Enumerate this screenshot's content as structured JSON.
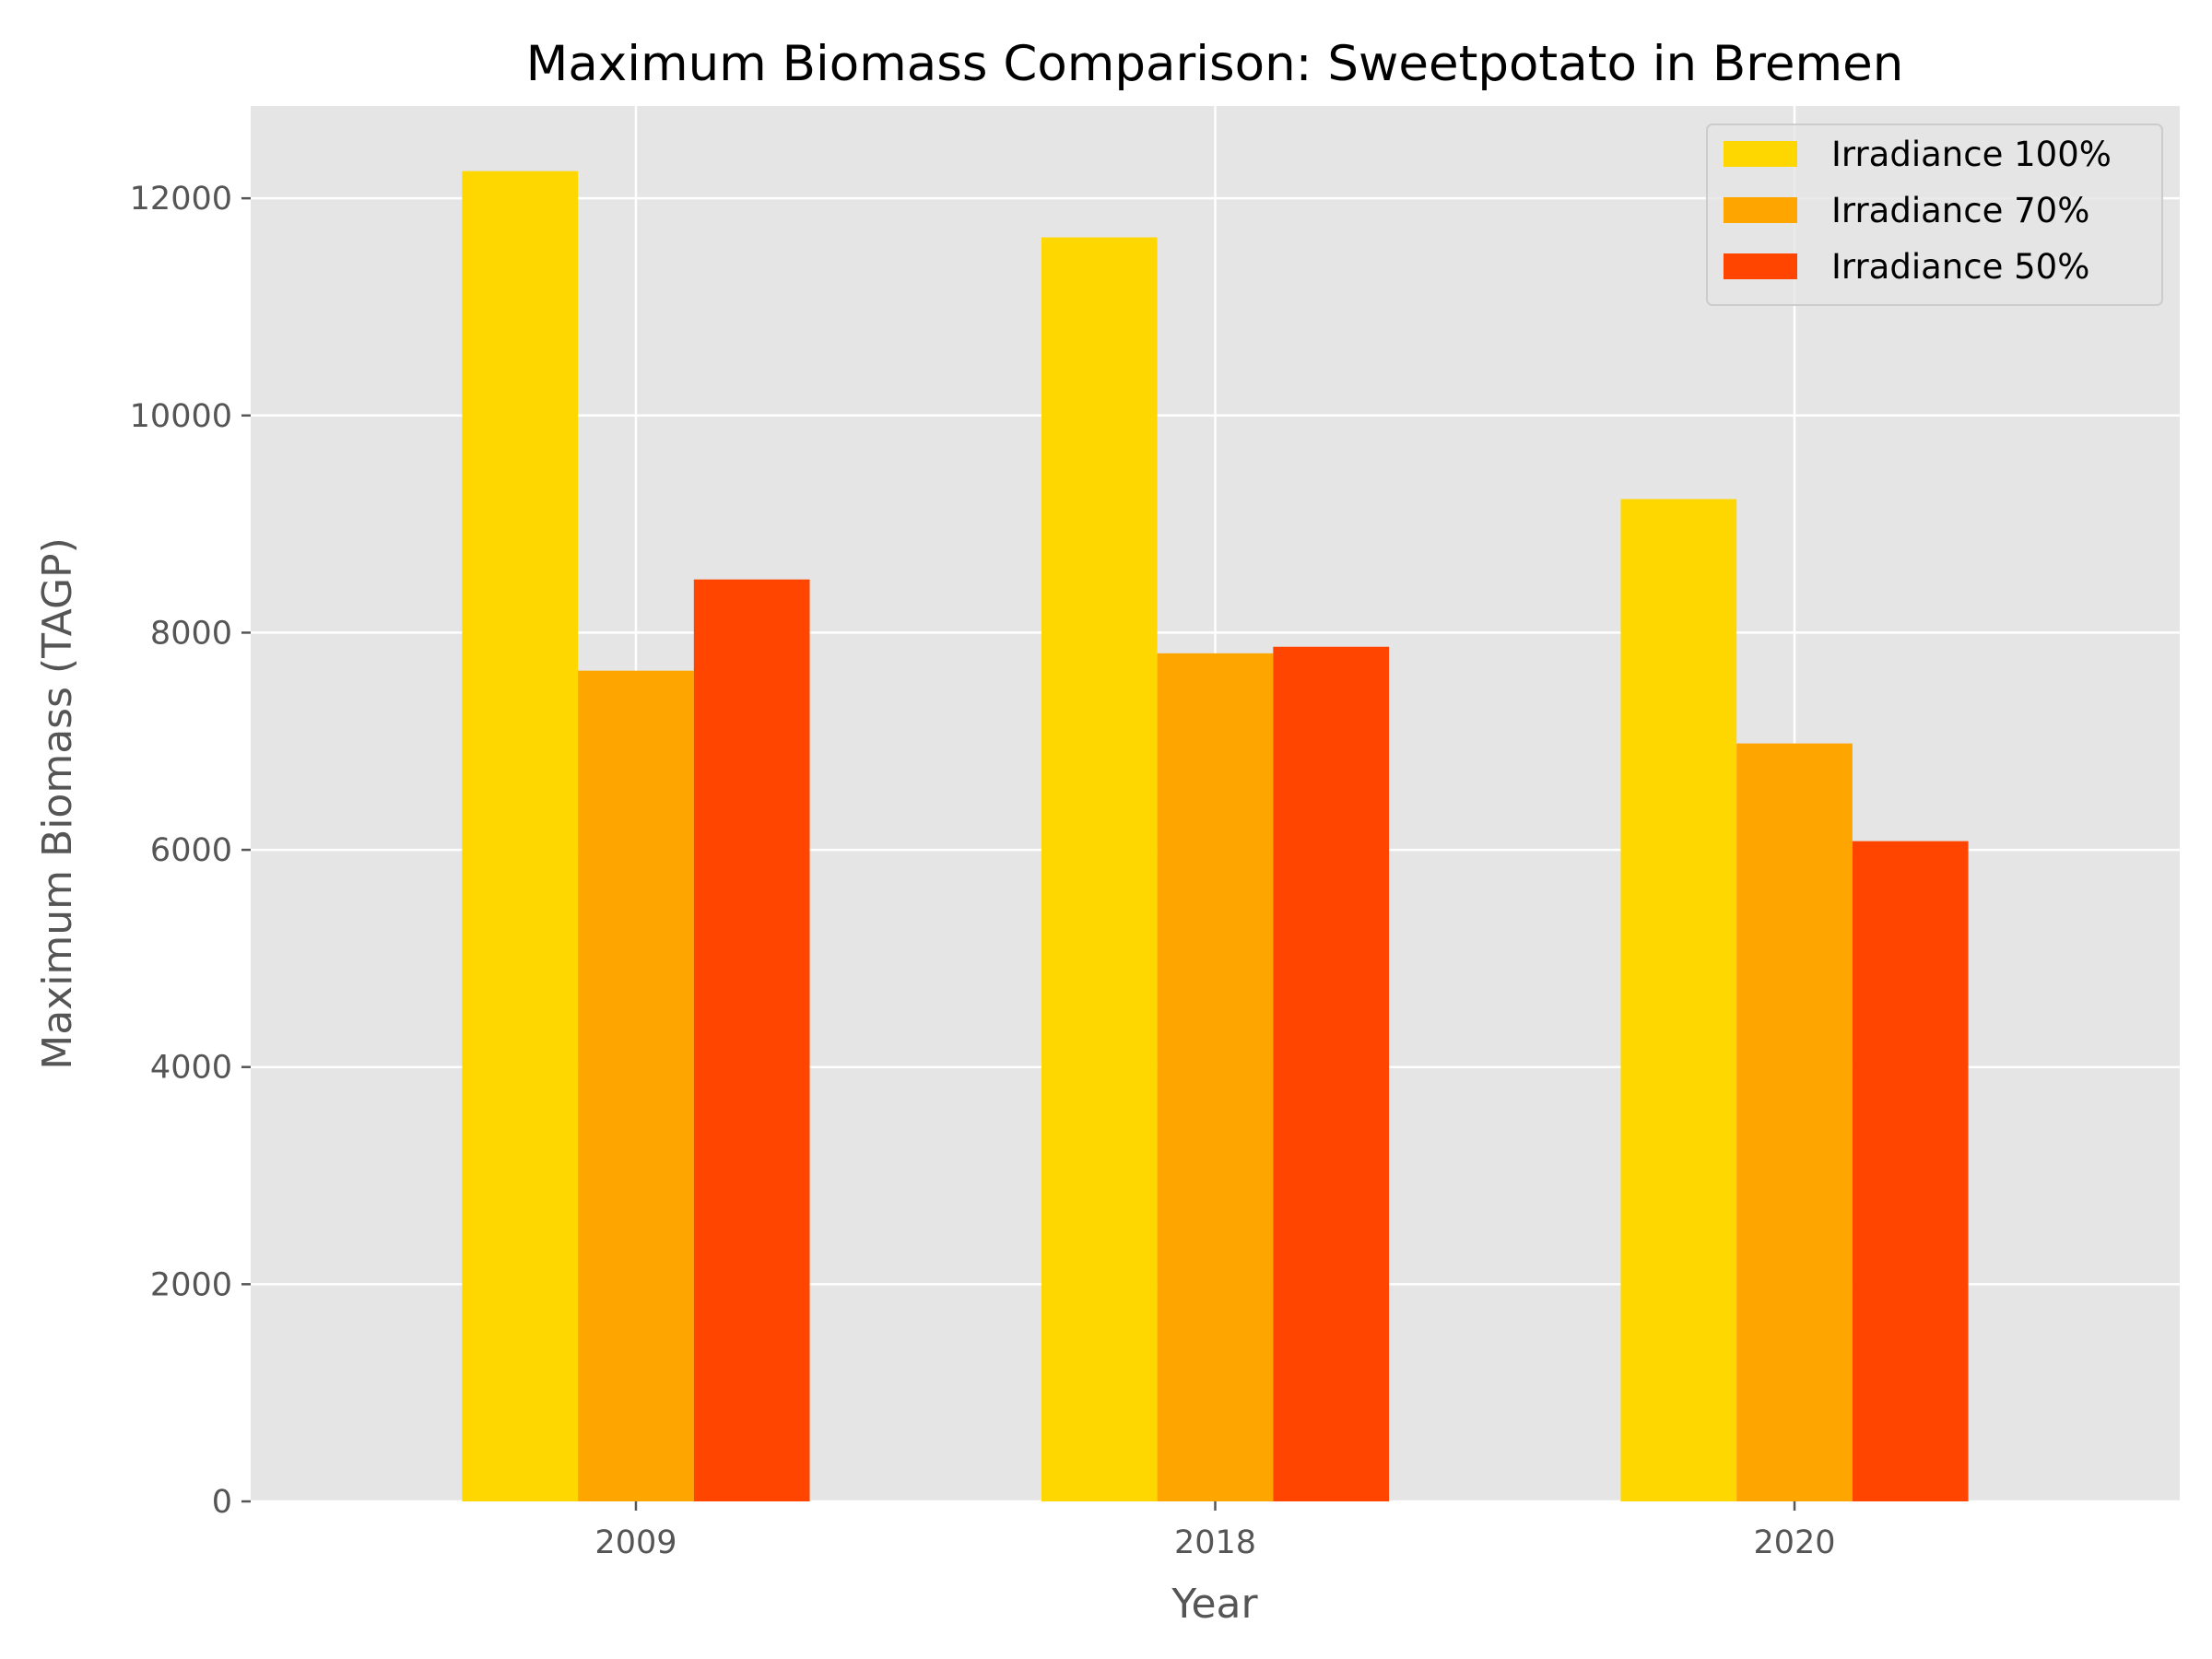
{
  "chart_data": {
    "type": "bar",
    "title": "Maximum Biomass Comparison: Sweetpotato in Bremen",
    "xlabel": "Year",
    "ylabel": "Maximum Biomass (TAGP)",
    "categories": [
      "2009",
      "2018",
      "2020"
    ],
    "series": [
      {
        "name": "Irradiance 100%",
        "color": "#FFD700",
        "values": [
          12250,
          11640,
          9230
        ]
      },
      {
        "name": "Irradiance 70%",
        "color": "#FFA500",
        "values": [
          7650,
          7810,
          6980
        ]
      },
      {
        "name": "Irradiance 50%",
        "color": "#FF4500",
        "values": [
          8490,
          7870,
          6080
        ]
      }
    ],
    "ylim": [
      0,
      12850
    ],
    "yticks": [
      0,
      2000,
      4000,
      6000,
      8000,
      10000,
      12000
    ],
    "grid": true,
    "legend_position": "top-right",
    "style": {
      "plot_background": "#E5E5E5",
      "grid_color": "#FFFFFF"
    }
  }
}
